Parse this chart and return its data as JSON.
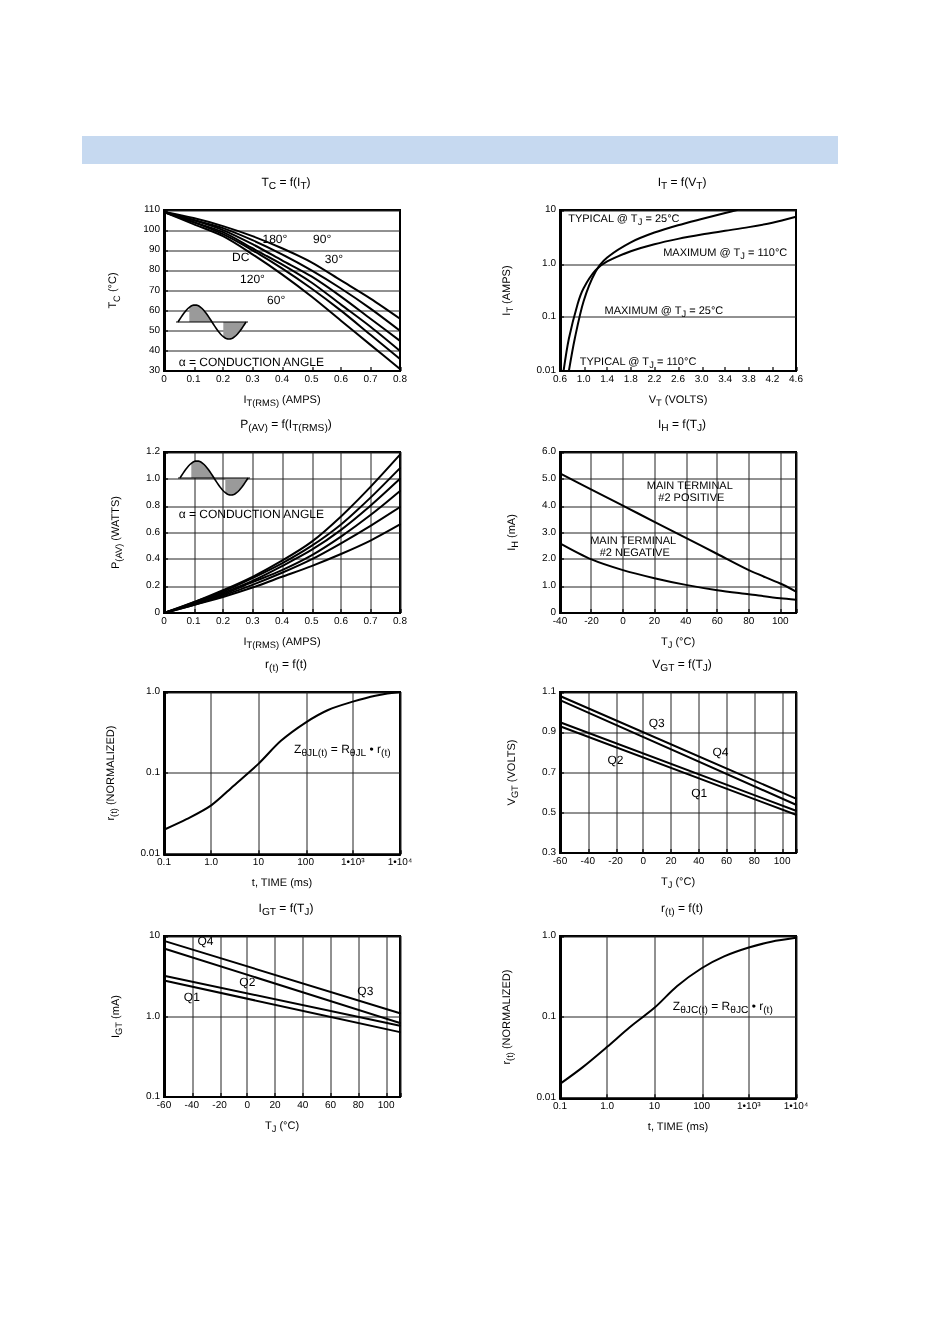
{
  "chart_data": [
    {
      "type": "line",
      "title": "T$_{C}$ = f(I$_{T}$)",
      "xlabel": "I$_{T(RMS)}$ (AMPS)",
      "ylabel": "T$_{C}$ (°C)",
      "x": [
        0,
        0.1,
        0.2,
        0.3,
        0.4,
        0.5,
        0.6,
        0.7,
        0.8
      ],
      "xlim": [
        0,
        0.8
      ],
      "ylim": [
        30,
        110
      ],
      "xticks": [
        0,
        0.1,
        0.2,
        0.3,
        0.4,
        0.5,
        0.6,
        0.7,
        0.8
      ],
      "yticks": [
        30,
        40,
        50,
        60,
        70,
        80,
        90,
        100,
        110
      ],
      "grid": "y",
      "series": [
        {
          "color": "#000000",
          "values": [
            109,
            106,
            102,
            97,
            91,
            84,
            75,
            66,
            56
          ]
        },
        {
          "color": "#000000",
          "values": [
            109,
            105,
            101,
            95,
            88,
            80,
            71,
            61,
            50
          ]
        },
        {
          "color": "#000000",
          "values": [
            109,
            105,
            100,
            93,
            85,
            77,
            67,
            56,
            45
          ]
        },
        {
          "color": "#000000",
          "values": [
            109,
            104,
            99,
            91,
            83,
            74,
            63,
            52,
            40
          ]
        },
        {
          "color": "#000000",
          "values": [
            109,
            104,
            98,
            90,
            81,
            71,
            60,
            48,
            36
          ]
        },
        {
          "color": "#000000",
          "values": [
            109,
            103,
            97,
            88,
            78,
            67,
            55,
            43,
            31
          ]
        }
      ],
      "annotations": [
        "180°",
        "DC",
        "90°",
        "30°",
        "120°",
        "60°",
        "α = CONDUCTION ANGLE"
      ]
    },
    {
      "type": "line",
      "title": "I$_{T}$ = f(V$_{T}$)",
      "xlabel": "V$_{T}$ (VOLTS)",
      "ylabel": "I$_{T}$ (AMPS)",
      "log": "y",
      "xlim": [
        0.6,
        4.6
      ],
      "ylim": [
        0.01,
        10
      ],
      "xticks": [
        0.6,
        {
          "value": 1,
          "label": "1.0"
        },
        1.4,
        1.8,
        2.2,
        2.6,
        {
          "value": 3,
          "label": "3.0"
        },
        3.4,
        3.8,
        4.2,
        4.6
      ],
      "yticks": [
        0.01,
        0.1,
        {
          "value": 1,
          "label": "1.0"
        },
        10
      ],
      "grid": "y",
      "series": [
        {
          "color": "#000000",
          "x": [
            0.75,
            0.85,
            1,
            1.2,
            1.4,
            1.8,
            2.2,
            2.6,
            3,
            3.4,
            3.6
          ],
          "values": [
            0.01,
            0.04,
            0.2,
            0.7,
            1.3,
            2.5,
            3.8,
            5.2,
            6.8,
            8.8,
            10
          ]
        },
        {
          "color": "#000000",
          "x": [
            0.66,
            0.75,
            0.9,
            1,
            1.2,
            1.4,
            1.8,
            2.2,
            2.6,
            3,
            3.4,
            3.8,
            4.2,
            4.6
          ],
          "values": [
            0.01,
            0.04,
            0.18,
            0.35,
            0.75,
            1.1,
            1.7,
            2.3,
            2.9,
            3.5,
            4.1,
            4.8,
            5.8,
            7.5
          ]
        }
      ],
      "annotations": [
        "TYPICAL @ T$_{J}$ = 25°C",
        "MAXIMUM @ T$_{J}$ = 110°C",
        "MAXIMUM @ T$_{J}$ = 25°C",
        "TYPICAL @ T$_{J}$ = 110°C"
      ]
    },
    {
      "type": "line",
      "title": "P$_{(AV)}$ = f(I$_{T(RMS)}$)",
      "xlabel": "I$_{T(RMS)}$ (AMPS)",
      "ylabel": "P$_{(AV)}$ (WATTS)",
      "x": [
        0,
        0.1,
        0.2,
        0.3,
        0.4,
        0.5,
        0.6,
        0.7,
        0.8
      ],
      "xlim": [
        0,
        0.8
      ],
      "ylim": [
        0,
        1.2
      ],
      "xticks": [
        0,
        0.1,
        0.2,
        0.3,
        0.4,
        0.5,
        0.6,
        0.7,
        0.8
      ],
      "yticks": [
        0,
        0.2,
        0.4,
        0.6,
        0.8,
        {
          "value": 1,
          "label": "1.0"
        },
        1.2
      ],
      "grid": true,
      "series": [
        {
          "color": "#000000",
          "values": [
            0,
            0.08,
            0.17,
            0.27,
            0.39,
            0.53,
            0.72,
            0.94,
            1.18
          ]
        },
        {
          "color": "#000000",
          "values": [
            0,
            0.08,
            0.16,
            0.26,
            0.37,
            0.5,
            0.66,
            0.86,
            1.08
          ]
        },
        {
          "color": "#000000",
          "values": [
            0,
            0.07,
            0.15,
            0.24,
            0.35,
            0.47,
            0.62,
            0.8,
            1
          ]
        },
        {
          "color": "#000000",
          "values": [
            0,
            0.07,
            0.14,
            0.23,
            0.32,
            0.43,
            0.57,
            0.73,
            0.91
          ]
        },
        {
          "color": "#000000",
          "values": [
            0,
            0.06,
            0.13,
            0.21,
            0.3,
            0.4,
            0.52,
            0.65,
            0.79
          ]
        },
        {
          "color": "#000000",
          "values": [
            0,
            0.06,
            0.12,
            0.19,
            0.27,
            0.35,
            0.44,
            0.54,
            0.66
          ]
        }
      ],
      "annotations": [
        "α = CONDUCTION ANGLE"
      ]
    },
    {
      "type": "line",
      "title": "I$_{H}$ = f(T$_{J}$)",
      "xlabel": "T$_{J}$ (°C)",
      "ylabel": "I$_{H}$ (mA)",
      "x": [
        -40,
        -20,
        0,
        20,
        40,
        60,
        80,
        100,
        110
      ],
      "xlim": [
        -40,
        110
      ],
      "ylim": [
        0,
        6
      ],
      "xticks": [
        -40,
        -20,
        0,
        20,
        40,
        60,
        80,
        100
      ],
      "yticks": [
        0,
        {
          "value": 1,
          "label": "1.0"
        },
        {
          "value": 2,
          "label": "2.0"
        },
        {
          "value": 3,
          "label": "3.0"
        },
        {
          "value": 4,
          "label": "4.0"
        },
        {
          "value": 5,
          "label": "5.0"
        },
        {
          "value": 6,
          "label": "6.0"
        }
      ],
      "grid": true,
      "series": [
        {
          "color": "#000000",
          "values": [
            5.2,
            4.6,
            4,
            3.4,
            2.8,
            2.2,
            1.6,
            1.1,
            0.8
          ]
        },
        {
          "color": "#000000",
          "values": [
            2.6,
            2,
            1.6,
            1.3,
            1.05,
            0.85,
            0.7,
            0.55,
            0.5
          ]
        }
      ],
      "annotations": [
        "MAIN TERMINAL #2 POSITIVE",
        "MAIN TERMINAL #2 NEGATIVE"
      ]
    },
    {
      "type": "line",
      "title": "r$_{(t)}$ = f(t)",
      "xlabel": "t, TIME (ms)",
      "ylabel": "r$_{(t)}$ (NORMALIZED)",
      "log": "xy",
      "x": [
        0.1,
        0.3,
        1,
        3,
        10,
        30,
        100,
        300,
        1000,
        3000,
        10000
      ],
      "xlim": [
        0.1,
        10000
      ],
      "ylim": [
        0.01,
        1
      ],
      "xticks": [
        0.1,
        {
          "value": 1,
          "label": "1.0"
        },
        10,
        100,
        {
          "value": 1000,
          "label": "1•10³"
        },
        {
          "value": 10000,
          "label": "1•10⁴"
        }
      ],
      "yticks": [
        0.01,
        0.1,
        {
          "value": 1,
          "label": "1.0"
        }
      ],
      "grid": true,
      "series": [
        {
          "color": "#000000",
          "values": [
            0.02,
            0.027,
            0.04,
            0.07,
            0.13,
            0.25,
            0.42,
            0.6,
            0.76,
            0.9,
            1
          ]
        }
      ],
      "annotations": [
        "Z$_{θJL(t)}$ = R$_{θJL}$ • r$_{(t)}$"
      ]
    },
    {
      "type": "line",
      "title": "V$_{GT}$ = f(T$_{J}$)",
      "xlabel": "T$_{J}$ (°C)",
      "ylabel": "V$_{GT}$ (VOLTS)",
      "x": [
        -60,
        110
      ],
      "xlim": [
        -60,
        110
      ],
      "ylim": [
        0.3,
        1.1
      ],
      "xticks": [
        -60,
        -40,
        -20,
        0,
        20,
        40,
        60,
        80,
        100
      ],
      "yticks": [
        0.3,
        0.5,
        0.7,
        0.9,
        1.1
      ],
      "grid": true,
      "series": [
        {
          "color": "#000000",
          "values": [
            1.08,
            0.57
          ]
        },
        {
          "color": "#000000",
          "values": [
            1.06,
            0.54
          ]
        },
        {
          "color": "#000000",
          "values": [
            0.95,
            0.51
          ]
        },
        {
          "color": "#000000",
          "values": [
            0.93,
            0.49
          ]
        }
      ],
      "annotations": [
        "Q3",
        "Q4",
        "Q2",
        "Q1"
      ]
    },
    {
      "type": "line",
      "title": "I$_{GT}$ = f(T$_{J}$)",
      "xlabel": "T$_{J}$ (°C)",
      "ylabel": "I$_{GT}$ (mA)",
      "log": "y",
      "x": [
        -60,
        110
      ],
      "xlim": [
        -60,
        110
      ],
      "ylim": [
        0.1,
        10
      ],
      "xticks": [
        -60,
        -40,
        -20,
        0,
        20,
        40,
        60,
        80,
        100
      ],
      "yticks": [
        0.1,
        {
          "value": 1,
          "label": "1.0"
        },
        10
      ],
      "grid": true,
      "series": [
        {
          "color": "#000000",
          "values": [
            8.7,
            1.1
          ]
        },
        {
          "color": "#000000",
          "values": [
            7,
            0.83
          ]
        },
        {
          "color": "#000000",
          "values": [
            3.2,
            0.77
          ]
        },
        {
          "color": "#000000",
          "values": [
            2.8,
            0.64
          ]
        }
      ],
      "annotations": [
        "Q4",
        "Q3",
        "Q2",
        "Q1"
      ]
    },
    {
      "type": "line",
      "title": "r$_{(t)}$ = f(t)",
      "xlabel": "t, TIME (ms)",
      "ylabel": "r$_{(t)}$ (NORMALIZED)",
      "log": "xy",
      "x": [
        0.1,
        0.3,
        1,
        3,
        10,
        30,
        100,
        300,
        1000,
        3000,
        10000
      ],
      "xlim": [
        0.1,
        10000
      ],
      "ylim": [
        0.01,
        1
      ],
      "xticks": [
        0.1,
        {
          "value": 1,
          "label": "1.0"
        },
        10,
        100,
        {
          "value": 1000,
          "label": "1•10³"
        },
        {
          "value": 10000,
          "label": "1•10⁴"
        }
      ],
      "yticks": [
        0.01,
        0.1,
        {
          "value": 1,
          "label": "1.0"
        }
      ],
      "grid": true,
      "series": [
        {
          "color": "#000000",
          "values": [
            0.015,
            0.024,
            0.043,
            0.075,
            0.13,
            0.24,
            0.4,
            0.56,
            0.72,
            0.85,
            0.95
          ]
        }
      ],
      "annotations": [
        "Z$_{θJC(t)}$ = R$_{θJC}$ • r$_{(t)}$"
      ]
    }
  ]
}
